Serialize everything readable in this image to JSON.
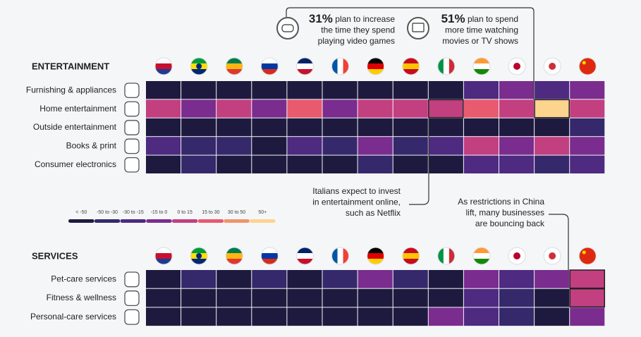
{
  "legend": {
    "labels": [
      "< -50",
      "-50 to -30",
      "-30 to -15",
      "-15 to 0",
      "0 to 15",
      "15 to 30",
      "30 to 50",
      "50+"
    ],
    "colors": [
      "#1e1a3f",
      "#35296b",
      "#4e2a81",
      "#7a2d8e",
      "#c23f80",
      "#e85a6e",
      "#f0936b",
      "#fdd48e"
    ],
    "thresholds": [
      -50,
      -30,
      -15,
      0,
      15,
      30,
      50
    ]
  },
  "annotations": [
    {
      "percent": "31%",
      "lines": [
        "plan to increase",
        "the time they spend",
        "playing video games"
      ]
    },
    {
      "percent": "51%",
      "lines": [
        "plan to spend",
        "more time watching",
        "movies or TV shows"
      ]
    },
    {
      "lines": [
        "Italians expect to invest",
        "in entertainment online,",
        "such as Netflix"
      ]
    },
    {
      "lines": [
        "As restrictions in China",
        "lift, many businesses",
        "are bouncing back"
      ]
    }
  ],
  "chart_data": [
    {
      "type": "heatmap",
      "title": "ENTERTAINMENT",
      "categories": [
        null,
        null,
        null,
        null,
        null,
        null,
        null,
        null,
        null,
        null,
        null,
        null,
        null
      ],
      "highlight": [
        [
          1,
          8
        ],
        [
          1,
          11
        ]
      ],
      "series": [
        {
          "name": "Furnishing & appliances",
          "values": [
            -60,
            -60,
            -60,
            -60,
            -60,
            -60,
            -60,
            -60,
            -60,
            -22,
            -7,
            -22,
            -7
          ]
        },
        {
          "name": "Home entertainment",
          "values": [
            7,
            -7,
            7,
            -7,
            22,
            -7,
            7,
            7,
            7,
            22,
            7,
            60,
            7
          ]
        },
        {
          "name": "Outside entertainment",
          "values": [
            -60,
            -60,
            -60,
            -60,
            -60,
            -60,
            -60,
            -60,
            -60,
            -60,
            -60,
            -60,
            -40
          ]
        },
        {
          "name": "Books & print",
          "values": [
            -22,
            -40,
            -40,
            -60,
            -22,
            -40,
            -7,
            -40,
            -22,
            7,
            -7,
            7,
            -7
          ]
        },
        {
          "name": "Consumer electronics",
          "values": [
            -60,
            -40,
            -60,
            -60,
            -60,
            -60,
            -40,
            -60,
            -60,
            -22,
            -22,
            -40,
            -22
          ]
        }
      ]
    },
    {
      "type": "heatmap",
      "title": "SERVICES",
      "categories": [
        null,
        null,
        null,
        null,
        null,
        null,
        null,
        null,
        null,
        null,
        null,
        null,
        null
      ],
      "highlight": [
        [
          0,
          12
        ],
        [
          1,
          12
        ]
      ],
      "series": [
        {
          "name": "Pet-care services",
          "values": [
            -60,
            -40,
            -60,
            -40,
            -60,
            -40,
            -7,
            -40,
            -60,
            -7,
            -22,
            -7,
            7
          ]
        },
        {
          "name": "Fitness & wellness",
          "values": [
            -60,
            -60,
            -60,
            -60,
            -60,
            -60,
            -60,
            -60,
            -60,
            -22,
            -40,
            -60,
            7
          ]
        },
        {
          "name": "Personal-care services",
          "values": [
            -60,
            -60,
            -60,
            -60,
            -60,
            -60,
            -60,
            -60,
            -7,
            -22,
            -40,
            -60,
            -7
          ]
        }
      ]
    }
  ]
}
